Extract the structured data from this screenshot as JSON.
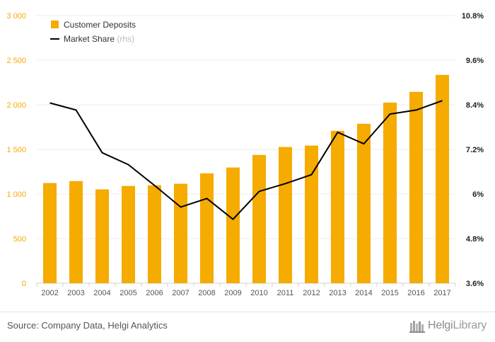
{
  "chart_data": {
    "type": "bar",
    "categories": [
      "2002",
      "2003",
      "2004",
      "2005",
      "2006",
      "2007",
      "2008",
      "2009",
      "2010",
      "2011",
      "2012",
      "2013",
      "2014",
      "2015",
      "2016",
      "2017"
    ],
    "series": [
      {
        "name": "Customer Deposits",
        "kind": "bar",
        "axis": "left",
        "color": "#f5ab00",
        "values": [
          1123,
          1145,
          1052,
          1090,
          1098,
          1115,
          1232,
          1297,
          1438,
          1527,
          1543,
          1708,
          1787,
          2025,
          2145,
          2335
        ]
      },
      {
        "name": "Market Share",
        "name_suffix": "(rhs)",
        "kind": "line",
        "axis": "right",
        "color": "#000000",
        "values": [
          8.45,
          8.26,
          7.11,
          6.79,
          6.23,
          5.65,
          5.88,
          5.32,
          6.07,
          6.28,
          6.52,
          7.66,
          7.35,
          8.15,
          8.26,
          8.51
        ]
      }
    ],
    "y_left": {
      "min": 0,
      "max": 3000,
      "ticks": [
        0,
        500,
        1000,
        1500,
        2000,
        2500,
        3000
      ],
      "tick_labels": [
        "0",
        "500",
        "1 000",
        "1 500",
        "2 000",
        "2 500",
        "3 000"
      ],
      "color": "#f5ab00"
    },
    "y_right": {
      "min": 3.6,
      "max": 10.8,
      "ticks": [
        3.6,
        4.8,
        6,
        7.2,
        8.4,
        9.6,
        10.8
      ],
      "tick_labels": [
        "3.6%",
        "4.8%",
        "6%",
        "7.2%",
        "8.4%",
        "9.6%",
        "10.8%"
      ],
      "color": "#000000"
    },
    "grid": true,
    "legend_position": "top-left"
  },
  "footer": {
    "source": "Source: Company Data, Helgi Analytics",
    "logo_part1": "Helgi",
    "logo_part2": "Library"
  }
}
